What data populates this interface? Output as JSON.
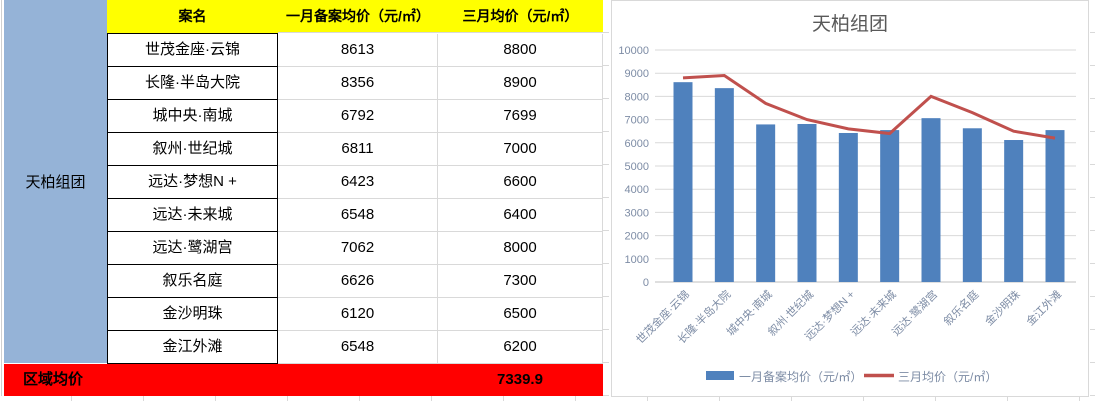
{
  "colors": {
    "header-bg": "#FFFF00",
    "group-bg": "#95B3D7",
    "footer-bg": "#FF0000",
    "bar": "#4F81BD",
    "line": "#C0504D",
    "axis-text": "#7D8CA5",
    "title-text": "#595959",
    "grid": "#D9D9D9"
  },
  "table": {
    "group_label": "天柏组团",
    "headers": [
      "案名",
      "一月备案均价（元/㎡）",
      "三月均价（元/㎡）"
    ],
    "rows": [
      {
        "name": "世茂金座·云锦",
        "jan": "8613",
        "mar": "8800"
      },
      {
        "name": "长隆·半岛大院",
        "jan": "8356",
        "mar": "8900"
      },
      {
        "name": "城中央·南城",
        "jan": "6792",
        "mar": "7699"
      },
      {
        "name": "叙州·世纪城",
        "jan": "6811",
        "mar": "7000"
      },
      {
        "name": "远达·梦想N +",
        "jan": "6423",
        "mar": "6600"
      },
      {
        "name": "远达·未来城",
        "jan": "6548",
        "mar": "6400"
      },
      {
        "name": "远达·鹭湖宫",
        "jan": "7062",
        "mar": "8000"
      },
      {
        "name": "叙乐名庭",
        "jan": "6626",
        "mar": "7300"
      },
      {
        "name": "金沙明珠",
        "jan": "6120",
        "mar": "6500"
      },
      {
        "name": "金江外滩",
        "jan": "6548",
        "mar": "6200"
      }
    ],
    "footer": {
      "label": "区域均价",
      "value": "7339.9"
    }
  },
  "chart_data": {
    "type": "bar",
    "title": "天柏组团",
    "categories": [
      "世茂金座·云锦",
      "长隆·半岛大院",
      "城中央·南城",
      "叙州·世纪城",
      "远达·梦想N +",
      "远达·未来城",
      "远达·鹭湖宫",
      "叙乐名庭",
      "金沙明珠",
      "金江外滩"
    ],
    "series": [
      {
        "name": "一月备案均价（元/㎡）",
        "type": "bar",
        "color": "#4F81BD",
        "values": [
          8613,
          8356,
          6792,
          6811,
          6423,
          6548,
          7062,
          6626,
          6120,
          6548
        ]
      },
      {
        "name": "三月均价（元/㎡）",
        "type": "line",
        "color": "#C0504D",
        "values": [
          8800,
          8900,
          7699,
          7000,
          6600,
          6400,
          8000,
          7300,
          6500,
          6200
        ]
      }
    ],
    "ylim": [
      0,
      10000
    ],
    "ytick_step": 1000,
    "grid": true,
    "legend_position": "bottom",
    "xlabel": "",
    "ylabel": ""
  }
}
